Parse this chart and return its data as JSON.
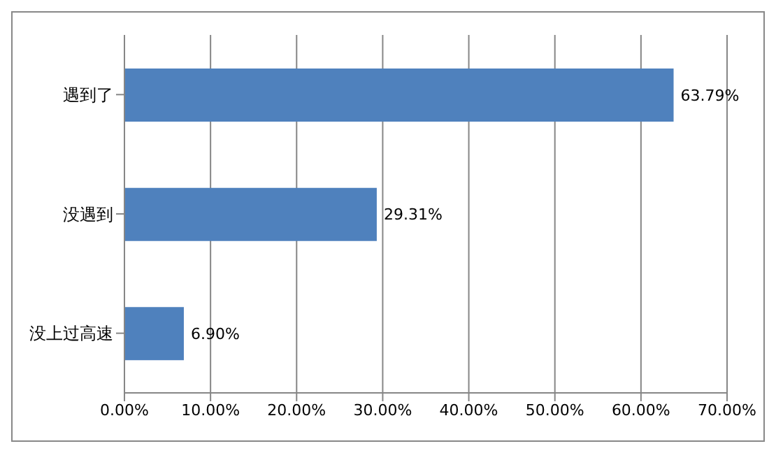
{
  "chart_data": {
    "type": "bar",
    "orientation": "horizontal",
    "categories": [
      "遇到了",
      "没遇到",
      "没上过高速"
    ],
    "values": [
      63.79,
      29.31,
      6.9
    ],
    "value_labels": [
      "63.79%",
      "29.31%",
      "6.90%"
    ],
    "color": "#4f81bd",
    "xlim": [
      0,
      70
    ],
    "xticks": [
      {
        "value": 0,
        "label": "0.00%"
      },
      {
        "value": 10,
        "label": "10.00%"
      },
      {
        "value": 20,
        "label": "20.00%"
      },
      {
        "value": 30,
        "label": "30.00%"
      },
      {
        "value": 40,
        "label": "40.00%"
      },
      {
        "value": 50,
        "label": "50.00%"
      },
      {
        "value": 60,
        "label": "60.00%"
      },
      {
        "value": 70,
        "label": "70.00%"
      }
    ],
    "grid": "x",
    "legend": false
  }
}
